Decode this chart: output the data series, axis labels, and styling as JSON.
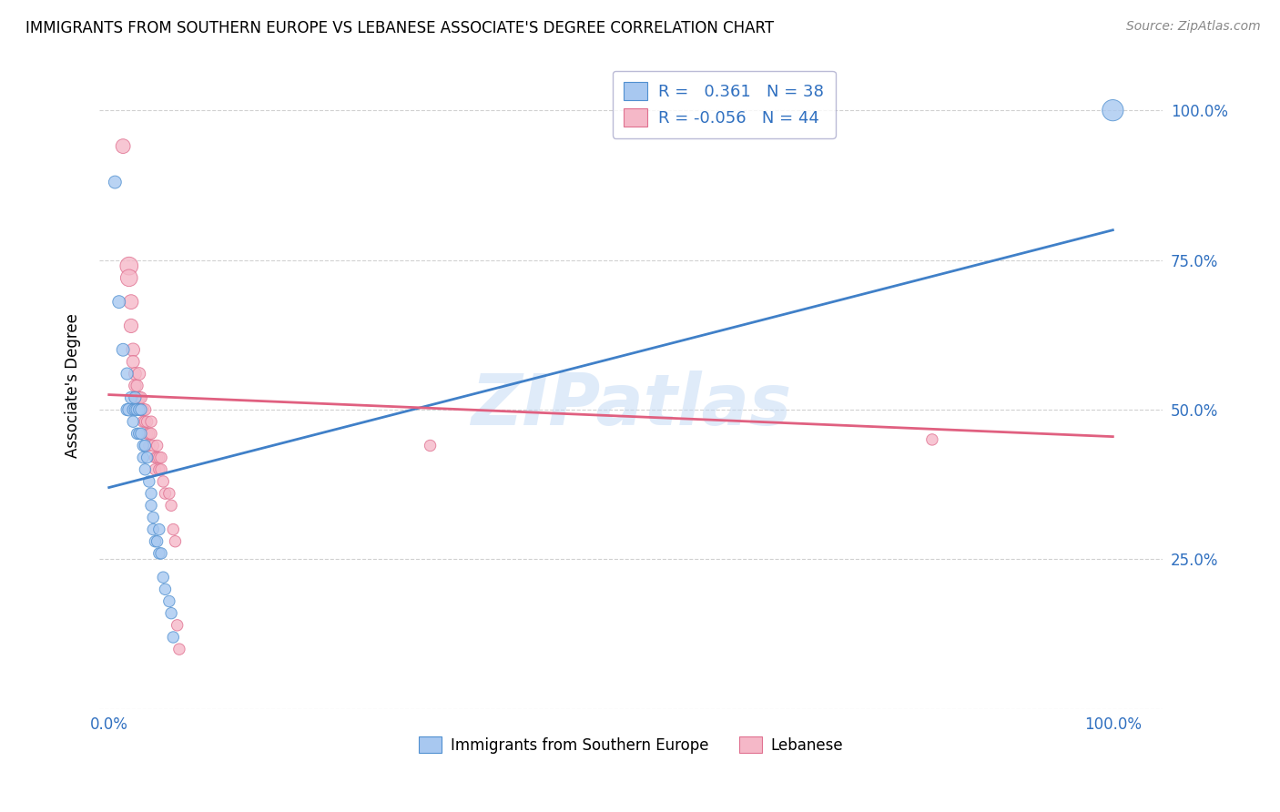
{
  "title": "IMMIGRANTS FROM SOUTHERN EUROPE VS LEBANESE ASSOCIATE'S DEGREE CORRELATION CHART",
  "source": "Source: ZipAtlas.com",
  "ylabel": "Associate's Degree",
  "legend1_label": "Immigrants from Southern Europe",
  "legend2_label": "Lebanese",
  "R1": 0.361,
  "N1": 38,
  "R2": -0.056,
  "N2": 44,
  "color_blue": "#A8C8F0",
  "color_pink": "#F5B8C8",
  "color_blue_edge": "#5090D0",
  "color_pink_edge": "#E07090",
  "color_blue_line": "#4080C8",
  "color_pink_line": "#E06080",
  "watermark": "ZIPatlas",
  "blue_line_x0": 0.0,
  "blue_line_y0": 0.37,
  "blue_line_x1": 1.0,
  "blue_line_y1": 0.8,
  "pink_line_x0": 0.0,
  "pink_line_y0": 0.525,
  "pink_line_x1": 1.0,
  "pink_line_y1": 0.455,
  "blue_points": [
    [
      0.006,
      0.88
    ],
    [
      0.01,
      0.68
    ],
    [
      0.014,
      0.6
    ],
    [
      0.018,
      0.56
    ],
    [
      0.018,
      0.5
    ],
    [
      0.02,
      0.5
    ],
    [
      0.022,
      0.52
    ],
    [
      0.024,
      0.5
    ],
    [
      0.024,
      0.48
    ],
    [
      0.026,
      0.52
    ],
    [
      0.026,
      0.5
    ],
    [
      0.028,
      0.5
    ],
    [
      0.028,
      0.46
    ],
    [
      0.03,
      0.5
    ],
    [
      0.03,
      0.46
    ],
    [
      0.032,
      0.5
    ],
    [
      0.032,
      0.46
    ],
    [
      0.034,
      0.44
    ],
    [
      0.034,
      0.42
    ],
    [
      0.036,
      0.4
    ],
    [
      0.036,
      0.44
    ],
    [
      0.038,
      0.42
    ],
    [
      0.04,
      0.38
    ],
    [
      0.042,
      0.36
    ],
    [
      0.042,
      0.34
    ],
    [
      0.044,
      0.32
    ],
    [
      0.044,
      0.3
    ],
    [
      0.046,
      0.28
    ],
    [
      0.048,
      0.28
    ],
    [
      0.05,
      0.26
    ],
    [
      0.05,
      0.3
    ],
    [
      0.052,
      0.26
    ],
    [
      0.054,
      0.22
    ],
    [
      0.056,
      0.2
    ],
    [
      0.06,
      0.18
    ],
    [
      0.062,
      0.16
    ],
    [
      0.064,
      0.12
    ],
    [
      1.0,
      1.0
    ]
  ],
  "pink_points": [
    [
      0.014,
      0.94
    ],
    [
      0.02,
      0.74
    ],
    [
      0.02,
      0.72
    ],
    [
      0.022,
      0.68
    ],
    [
      0.022,
      0.64
    ],
    [
      0.024,
      0.6
    ],
    [
      0.024,
      0.58
    ],
    [
      0.026,
      0.56
    ],
    [
      0.026,
      0.54
    ],
    [
      0.028,
      0.52
    ],
    [
      0.028,
      0.54
    ],
    [
      0.03,
      0.56
    ],
    [
      0.03,
      0.52
    ],
    [
      0.032,
      0.5
    ],
    [
      0.032,
      0.52
    ],
    [
      0.034,
      0.5
    ],
    [
      0.034,
      0.48
    ],
    [
      0.036,
      0.5
    ],
    [
      0.036,
      0.48
    ],
    [
      0.038,
      0.48
    ],
    [
      0.038,
      0.46
    ],
    [
      0.04,
      0.46
    ],
    [
      0.04,
      0.44
    ],
    [
      0.042,
      0.48
    ],
    [
      0.042,
      0.46
    ],
    [
      0.044,
      0.44
    ],
    [
      0.046,
      0.42
    ],
    [
      0.046,
      0.4
    ],
    [
      0.048,
      0.44
    ],
    [
      0.048,
      0.42
    ],
    [
      0.05,
      0.42
    ],
    [
      0.05,
      0.4
    ],
    [
      0.052,
      0.42
    ],
    [
      0.052,
      0.4
    ],
    [
      0.054,
      0.38
    ],
    [
      0.056,
      0.36
    ],
    [
      0.06,
      0.36
    ],
    [
      0.062,
      0.34
    ],
    [
      0.064,
      0.3
    ],
    [
      0.066,
      0.28
    ],
    [
      0.068,
      0.14
    ],
    [
      0.07,
      0.1
    ],
    [
      0.32,
      0.44
    ],
    [
      0.82,
      0.45
    ]
  ],
  "blue_sizes": [
    100,
    100,
    100,
    90,
    90,
    100,
    90,
    80,
    80,
    90,
    80,
    90,
    80,
    80,
    80,
    80,
    80,
    80,
    80,
    80,
    80,
    80,
    80,
    80,
    80,
    80,
    80,
    80,
    80,
    80,
    80,
    80,
    80,
    80,
    80,
    80,
    80,
    280
  ],
  "pink_sizes": [
    130,
    200,
    180,
    130,
    120,
    110,
    100,
    100,
    95,
    95,
    90,
    100,
    90,
    90,
    85,
    85,
    80,
    85,
    80,
    80,
    80,
    80,
    80,
    80,
    80,
    80,
    80,
    80,
    80,
    80,
    80,
    80,
    80,
    80,
    80,
    80,
    80,
    80,
    80,
    80,
    80,
    80,
    80,
    80
  ],
  "xlim": [
    -0.01,
    1.05
  ],
  "ylim": [
    0.0,
    1.08
  ],
  "xticks": [
    0.0,
    0.25,
    0.5,
    0.75,
    1.0
  ],
  "yticks": [
    0.0,
    0.25,
    0.5,
    0.75,
    1.0
  ]
}
